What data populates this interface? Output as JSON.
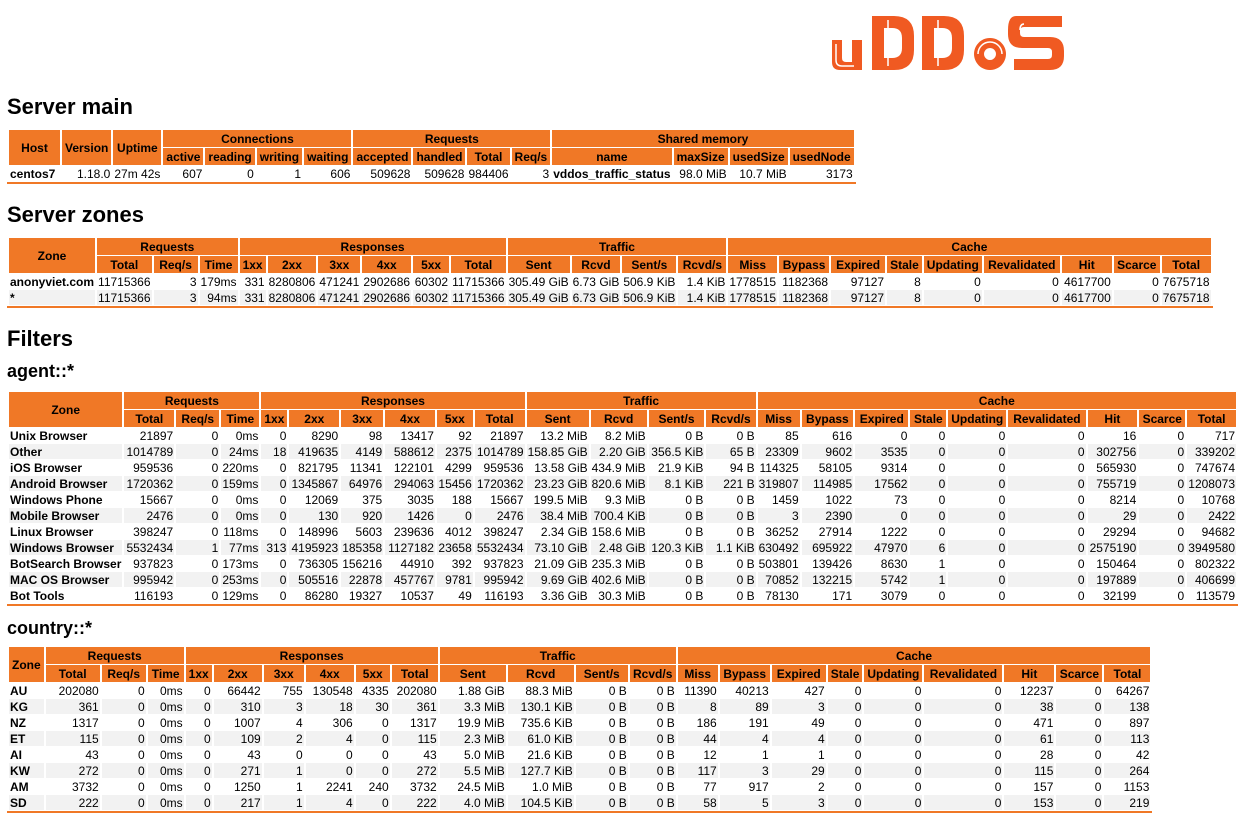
{
  "logo": {
    "text": "vDDoS",
    "color": "#f05a22"
  },
  "colors": {
    "header_bg": "#f07826",
    "row_alt": "#f2f2f2",
    "accent": "#f05a22"
  },
  "server_main": {
    "title": "Server main",
    "group_headers": {
      "host": "Host",
      "version": "Version",
      "uptime": "Uptime",
      "connections": "Connections",
      "requests": "Requests",
      "shared_memory": "Shared memory"
    },
    "sub_headers": {
      "active": "active",
      "reading": "reading",
      "writing": "writing",
      "waiting": "waiting",
      "accepted": "accepted",
      "handled": "handled",
      "total": "Total",
      "reqs": "Req/s",
      "name": "name",
      "max_size": "maxSize",
      "used_size": "usedSize",
      "used_node": "usedNode"
    },
    "row": {
      "host": "centos7",
      "version": "1.18.0",
      "uptime": "27m 42s",
      "active": "607",
      "reading": "0",
      "writing": "1",
      "waiting": "606",
      "accepted": "509628",
      "handled": "509628",
      "total": "984406",
      "reqs": "3",
      "name": "vddos_traffic_status",
      "max_size": "98.0 MiB",
      "used_size": "10.7 MiB",
      "used_node": "3173"
    }
  },
  "headers": {
    "zone": "Zone",
    "groups": {
      "requests": "Requests",
      "responses": "Responses",
      "traffic": "Traffic",
      "cache": "Cache"
    },
    "cols": [
      "Total",
      "Req/s",
      "Time",
      "1xx",
      "2xx",
      "3xx",
      "4xx",
      "5xx",
      "Total",
      "Sent",
      "Rcvd",
      "Sent/s",
      "Rcvd/s",
      "Miss",
      "Bypass",
      "Expired",
      "Stale",
      "Updating",
      "Revalidated",
      "Hit",
      "Scarce",
      "Total"
    ]
  },
  "server_zones": {
    "title": "Server zones",
    "rows": [
      [
        "anonyviet.com",
        "11715366",
        "3",
        "179ms",
        "331",
        "8280806",
        "471241",
        "2902686",
        "60302",
        "11715366",
        "305.49 GiB",
        "6.73 GiB",
        "506.9 KiB",
        "1.4 KiB",
        "1778515",
        "1182368",
        "97127",
        "8",
        "0",
        "0",
        "4617700",
        "0",
        "7675718"
      ],
      [
        "*",
        "11715366",
        "3",
        "94ms",
        "331",
        "8280806",
        "471241",
        "2902686",
        "60302",
        "11715366",
        "305.49 GiB",
        "6.73 GiB",
        "506.9 KiB",
        "1.4 KiB",
        "1778515",
        "1182368",
        "97127",
        "8",
        "0",
        "0",
        "4617700",
        "0",
        "7675718"
      ]
    ]
  },
  "filters": {
    "title": "Filters",
    "agent": {
      "title": "agent::*",
      "rows": [
        [
          "Unix Browser",
          "21897",
          "0",
          "0ms",
          "0",
          "8290",
          "98",
          "13417",
          "92",
          "21897",
          "13.2 MiB",
          "8.2 MiB",
          "0 B",
          "0 B",
          "85",
          "616",
          "0",
          "0",
          "0",
          "0",
          "16",
          "0",
          "717"
        ],
        [
          "Other",
          "1014789",
          "0",
          "24ms",
          "18",
          "419635",
          "4149",
          "588612",
          "2375",
          "1014789",
          "158.85 GiB",
          "2.20 GiB",
          "356.5 KiB",
          "65 B",
          "23309",
          "9602",
          "3535",
          "0",
          "0",
          "0",
          "302756",
          "0",
          "339202"
        ],
        [
          "iOS Browser",
          "959536",
          "0",
          "220ms",
          "0",
          "821795",
          "11341",
          "122101",
          "4299",
          "959536",
          "13.58 GiB",
          "434.9 MiB",
          "21.9 KiB",
          "94 B",
          "114325",
          "58105",
          "9314",
          "0",
          "0",
          "0",
          "565930",
          "0",
          "747674"
        ],
        [
          "Android Browser",
          "1720362",
          "0",
          "159ms",
          "0",
          "1345867",
          "64976",
          "294063",
          "15456",
          "1720362",
          "23.23 GiB",
          "820.6 MiB",
          "8.1 KiB",
          "221 B",
          "319807",
          "114985",
          "17562",
          "0",
          "0",
          "0",
          "755719",
          "0",
          "1208073"
        ],
        [
          "Windows Phone",
          "15667",
          "0",
          "0ms",
          "0",
          "12069",
          "375",
          "3035",
          "188",
          "15667",
          "199.5 MiB",
          "9.3 MiB",
          "0 B",
          "0 B",
          "1459",
          "1022",
          "73",
          "0",
          "0",
          "0",
          "8214",
          "0",
          "10768"
        ],
        [
          "Mobile Browser",
          "2476",
          "0",
          "0ms",
          "0",
          "130",
          "920",
          "1426",
          "0",
          "2476",
          "38.4 MiB",
          "700.4 KiB",
          "0 B",
          "0 B",
          "3",
          "2390",
          "0",
          "0",
          "0",
          "0",
          "29",
          "0",
          "2422"
        ],
        [
          "Linux Browser",
          "398247",
          "0",
          "118ms",
          "0",
          "148996",
          "5603",
          "239636",
          "4012",
          "398247",
          "2.34 GiB",
          "158.6 MiB",
          "0 B",
          "0 B",
          "36252",
          "27914",
          "1222",
          "0",
          "0",
          "0",
          "29294",
          "0",
          "94682"
        ],
        [
          "Windows Browser",
          "5532434",
          "1",
          "77ms",
          "313",
          "4195923",
          "185358",
          "1127182",
          "23658",
          "5532434",
          "73.10 GiB",
          "2.48 GiB",
          "120.3 KiB",
          "1.1 KiB",
          "630492",
          "695922",
          "47970",
          "6",
          "0",
          "0",
          "2575190",
          "0",
          "3949580"
        ],
        [
          "BotSearch Browser",
          "937823",
          "0",
          "173ms",
          "0",
          "736305",
          "156216",
          "44910",
          "392",
          "937823",
          "21.09 GiB",
          "235.3 MiB",
          "0 B",
          "0 B",
          "503801",
          "139426",
          "8630",
          "1",
          "0",
          "0",
          "150464",
          "0",
          "802322"
        ],
        [
          "MAC OS Browser",
          "995942",
          "0",
          "253ms",
          "0",
          "505516",
          "22878",
          "457767",
          "9781",
          "995942",
          "9.69 GiB",
          "402.6 MiB",
          "0 B",
          "0 B",
          "70852",
          "132215",
          "5742",
          "1",
          "0",
          "0",
          "197889",
          "0",
          "406699"
        ],
        [
          "Bot Tools",
          "116193",
          "0",
          "129ms",
          "0",
          "86280",
          "19327",
          "10537",
          "49",
          "116193",
          "3.36 GiB",
          "30.3 MiB",
          "0 B",
          "0 B",
          "78130",
          "171",
          "3079",
          "0",
          "0",
          "0",
          "32199",
          "0",
          "113579"
        ]
      ]
    },
    "country": {
      "title": "country::*",
      "rows": [
        [
          "AU",
          "202080",
          "0",
          "0ms",
          "0",
          "66442",
          "755",
          "130548",
          "4335",
          "202080",
          "1.88 GiB",
          "88.3 MiB",
          "0 B",
          "0 B",
          "11390",
          "40213",
          "427",
          "0",
          "0",
          "0",
          "12237",
          "0",
          "64267"
        ],
        [
          "KG",
          "361",
          "0",
          "0ms",
          "0",
          "310",
          "3",
          "18",
          "30",
          "361",
          "3.3 MiB",
          "130.1 KiB",
          "0 B",
          "0 B",
          "8",
          "89",
          "3",
          "0",
          "0",
          "0",
          "38",
          "0",
          "138"
        ],
        [
          "NZ",
          "1317",
          "0",
          "0ms",
          "0",
          "1007",
          "4",
          "306",
          "0",
          "1317",
          "19.9 MiB",
          "735.6 KiB",
          "0 B",
          "0 B",
          "186",
          "191",
          "49",
          "0",
          "0",
          "0",
          "471",
          "0",
          "897"
        ],
        [
          "ET",
          "115",
          "0",
          "0ms",
          "0",
          "109",
          "2",
          "4",
          "0",
          "115",
          "2.3 MiB",
          "61.0 KiB",
          "0 B",
          "0 B",
          "44",
          "4",
          "4",
          "0",
          "0",
          "0",
          "61",
          "0",
          "113"
        ],
        [
          "AI",
          "43",
          "0",
          "0ms",
          "0",
          "43",
          "0",
          "0",
          "0",
          "43",
          "5.0 MiB",
          "21.6 KiB",
          "0 B",
          "0 B",
          "12",
          "1",
          "1",
          "0",
          "0",
          "0",
          "28",
          "0",
          "42"
        ],
        [
          "KW",
          "272",
          "0",
          "0ms",
          "0",
          "271",
          "1",
          "0",
          "0",
          "272",
          "5.5 MiB",
          "127.7 KiB",
          "0 B",
          "0 B",
          "117",
          "3",
          "29",
          "0",
          "0",
          "0",
          "115",
          "0",
          "264"
        ],
        [
          "AM",
          "3732",
          "0",
          "0ms",
          "0",
          "1250",
          "1",
          "2241",
          "240",
          "3732",
          "24.5 MiB",
          "1.0 MiB",
          "0 B",
          "0 B",
          "77",
          "917",
          "2",
          "0",
          "0",
          "0",
          "157",
          "0",
          "1153"
        ],
        [
          "SD",
          "222",
          "0",
          "0ms",
          "0",
          "217",
          "1",
          "4",
          "0",
          "222",
          "4.0 MiB",
          "104.5 KiB",
          "0 B",
          "0 B",
          "58",
          "5",
          "3",
          "0",
          "0",
          "0",
          "153",
          "0",
          "219"
        ]
      ],
      "flag_colors": {
        "AU": [
          "#1f3f8f",
          "#c8d4ee"
        ],
        "KG": [
          "#e8361b",
          "#f2c230"
        ],
        "NZ": [
          "#1f3f8f",
          "#c43b3b"
        ],
        "ET": [
          "#2e9d3a",
          "#f3d33a",
          "#d8352a"
        ],
        "AI": [
          "#5aa5e6",
          "#ffffff"
        ],
        "KW": [
          "#2e8a3a",
          "#ffffff",
          "#d8352a"
        ],
        "AM": [
          "#d8352a",
          "#2b4fb0",
          "#f0a830"
        ],
        "SD": [
          "#d8352a",
          "#ffffff",
          "#222222"
        ]
      }
    }
  }
}
